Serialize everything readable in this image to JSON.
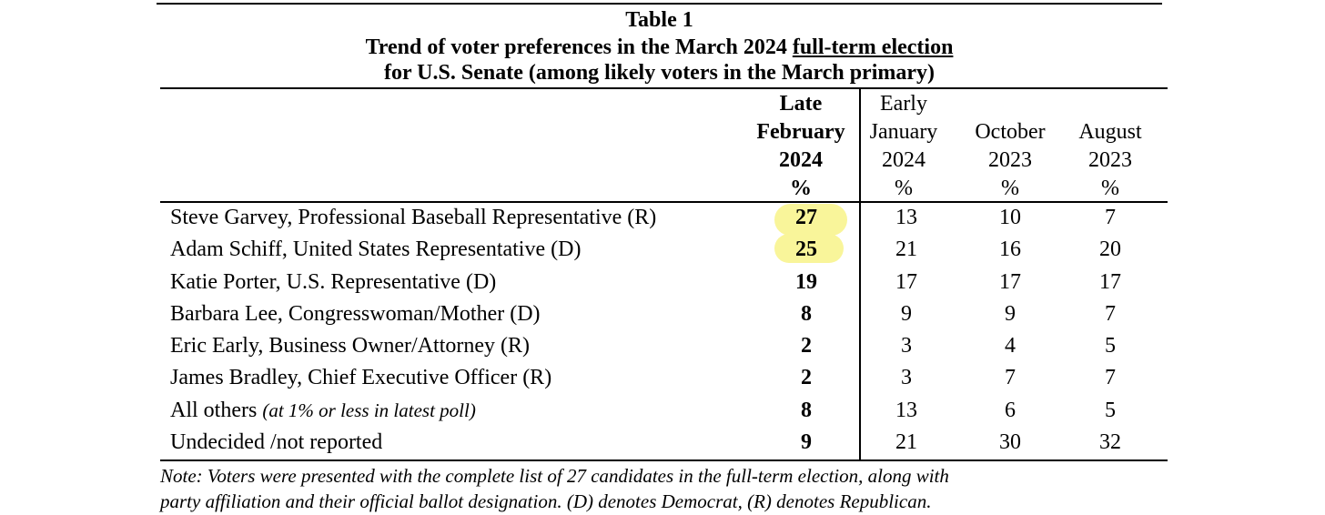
{
  "table": {
    "title": "Table 1",
    "subtitle_prefix": "Trend of voter preferences in the March 2024 ",
    "subtitle_underlined": "full-term election",
    "subtitle_line2": "for U.S. Senate (among likely voters in the March primary)",
    "columns": [
      {
        "lines": [
          "Late",
          "February",
          "2024",
          "%"
        ]
      },
      {
        "lines": [
          "Early",
          "January",
          "2024",
          "%"
        ]
      },
      {
        "lines": [
          "October",
          "2023",
          "%"
        ]
      },
      {
        "lines": [
          "August",
          "2023",
          "%"
        ]
      }
    ],
    "rows": [
      {
        "label": "Steve Garvey, Professional Baseball Representative (R)",
        "qualifier": "",
        "values": [
          "27",
          "13",
          "10",
          "7"
        ]
      },
      {
        "label": "Adam Schiff, United States Representative (D)",
        "qualifier": "",
        "values": [
          "25",
          "21",
          "16",
          "20"
        ]
      },
      {
        "label": "Katie Porter, U.S. Representative (D)",
        "qualifier": "",
        "values": [
          "19",
          "17",
          "17",
          "17"
        ]
      },
      {
        "label": "Barbara Lee, Congresswoman/Mother (D)",
        "qualifier": "",
        "values": [
          "8",
          "9",
          "9",
          "7"
        ]
      },
      {
        "label": "Eric Early, Business Owner/Attorney (R)",
        "qualifier": "",
        "values": [
          "2",
          "3",
          "4",
          "5"
        ]
      },
      {
        "label": "James Bradley, Chief Executive Officer (R)",
        "qualifier": "",
        "values": [
          "2",
          "3",
          "7",
          "7"
        ]
      },
      {
        "label": "All others ",
        "qualifier": "(at 1% or less in latest poll)",
        "values": [
          "8",
          "13",
          "6",
          "5"
        ]
      },
      {
        "label": "Undecided /not reported",
        "qualifier": "",
        "values": [
          "9",
          "21",
          "30",
          "32"
        ]
      }
    ],
    "highlight_color": "#f9f59a",
    "note_line1": "Note:  Voters were presented with the complete list of 27 candidates in the full-term election, along with",
    "note_line2": "party affiliation and their official ballot designation.  (D) denotes Democrat, (R) denotes Republican."
  }
}
